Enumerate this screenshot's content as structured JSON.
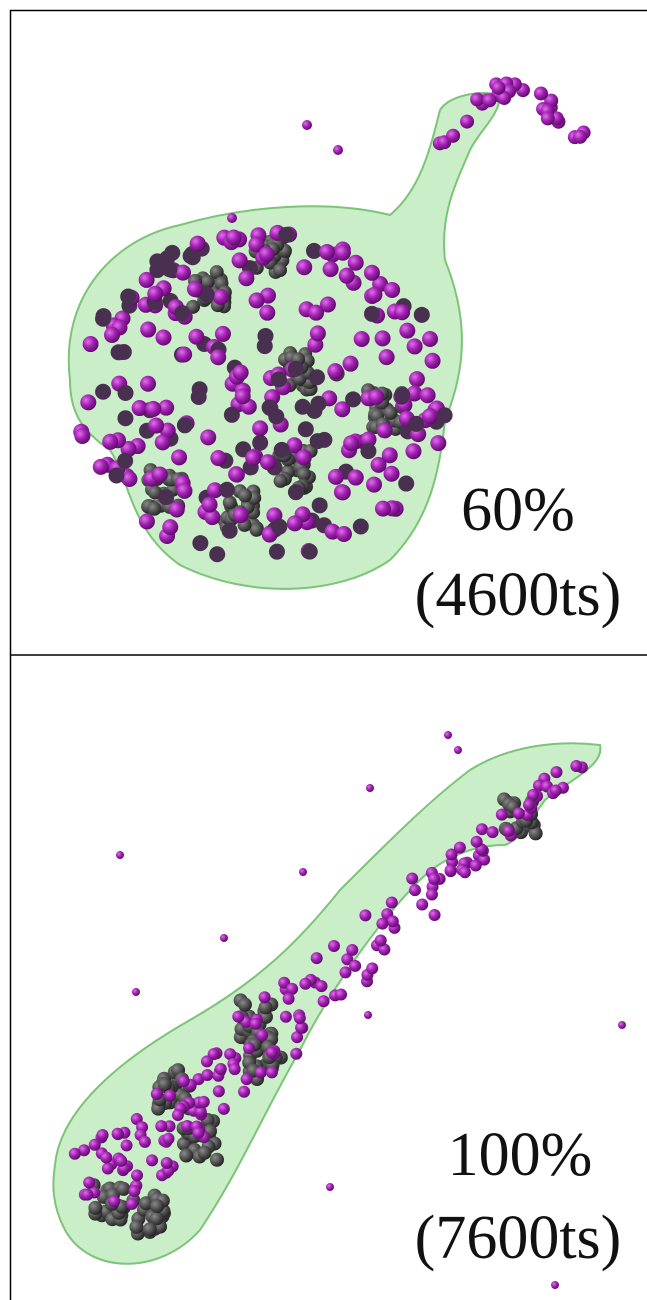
{
  "panels": [
    {
      "percent": "60%",
      "timestep": "(4600ts)"
    },
    {
      "percent": "100%",
      "timestep": "(7600ts)"
    }
  ]
}
